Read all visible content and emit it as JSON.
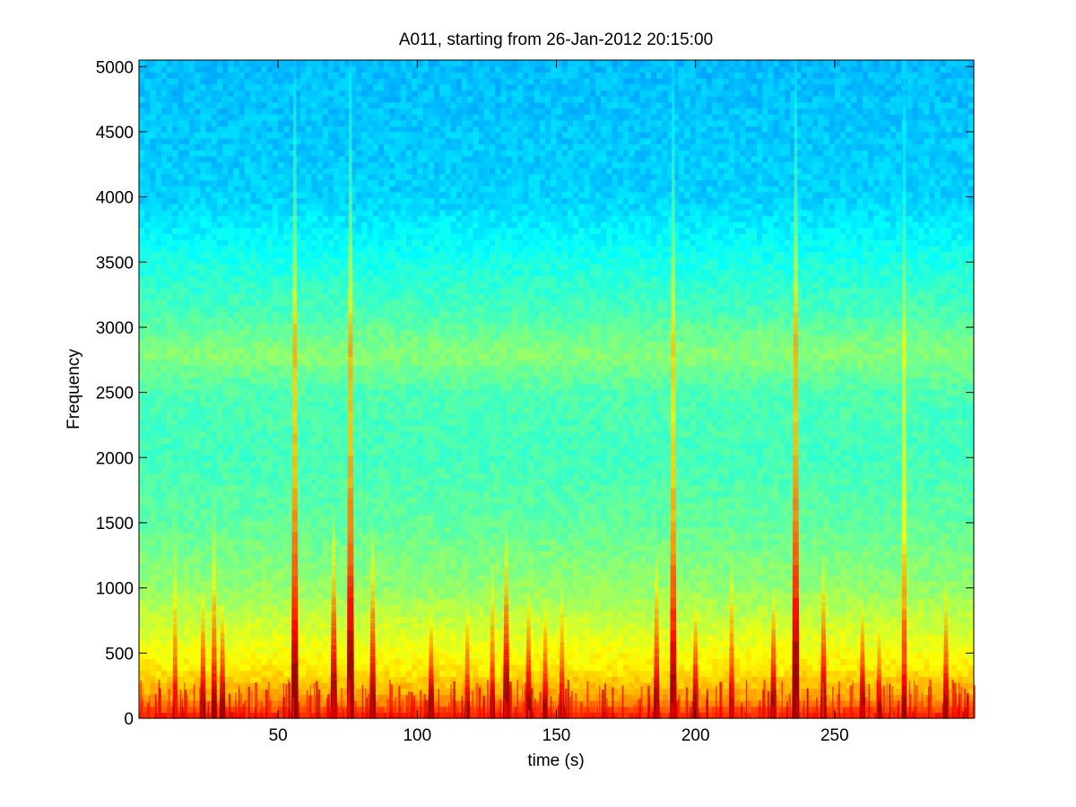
{
  "chart_data": {
    "type": "heatmap",
    "title": "A011, starting from 26-Jan-2012 20:15:00",
    "xlabel": "time (s)",
    "ylabel": "Frequency",
    "xlim": [
      0,
      300
    ],
    "ylim": [
      0,
      5050
    ],
    "x_ticks": [
      50,
      100,
      150,
      200,
      250
    ],
    "y_ticks": [
      0,
      500,
      1000,
      1500,
      2000,
      2500,
      3000,
      3500,
      4000,
      4500,
      5000
    ],
    "colormap": "jet",
    "grid": false,
    "legend": "none",
    "broadband_band_hz": [
      2700,
      2900
    ],
    "background_levels": [
      {
        "freq": 0,
        "level": 0.86
      },
      {
        "freq": 150,
        "level": 0.72
      },
      {
        "freq": 400,
        "level": 0.64
      },
      {
        "freq": 700,
        "level": 0.58
      },
      {
        "freq": 1000,
        "level": 0.52
      },
      {
        "freq": 1500,
        "level": 0.47
      },
      {
        "freq": 2000,
        "level": 0.44
      },
      {
        "freq": 2500,
        "level": 0.45
      },
      {
        "freq": 2800,
        "level": 0.51
      },
      {
        "freq": 3100,
        "level": 0.45
      },
      {
        "freq": 3500,
        "level": 0.4
      },
      {
        "freq": 4000,
        "level": 0.33
      },
      {
        "freq": 5050,
        "level": 0.31
      }
    ],
    "transient_events": [
      {
        "t": 13,
        "fmax": 1400,
        "strength": 0.5
      },
      {
        "t": 23,
        "fmax": 1000,
        "strength": 0.7
      },
      {
        "t": 27,
        "fmax": 1600,
        "strength": 0.65
      },
      {
        "t": 30,
        "fmax": 900,
        "strength": 0.75
      },
      {
        "t": 56,
        "fmax": 5050,
        "strength": 0.95
      },
      {
        "t": 70,
        "fmax": 1600,
        "strength": 0.9
      },
      {
        "t": 76,
        "fmax": 5050,
        "strength": 1.0
      },
      {
        "t": 84,
        "fmax": 1500,
        "strength": 0.8
      },
      {
        "t": 105,
        "fmax": 800,
        "strength": 0.8
      },
      {
        "t": 118,
        "fmax": 900,
        "strength": 0.6
      },
      {
        "t": 127,
        "fmax": 1200,
        "strength": 0.6
      },
      {
        "t": 132,
        "fmax": 1500,
        "strength": 0.9
      },
      {
        "t": 140,
        "fmax": 1000,
        "strength": 0.75
      },
      {
        "t": 146,
        "fmax": 900,
        "strength": 0.65
      },
      {
        "t": 152,
        "fmax": 1000,
        "strength": 0.6
      },
      {
        "t": 186,
        "fmax": 1300,
        "strength": 0.75
      },
      {
        "t": 192,
        "fmax": 5050,
        "strength": 0.85
      },
      {
        "t": 200,
        "fmax": 900,
        "strength": 0.75
      },
      {
        "t": 213,
        "fmax": 1300,
        "strength": 0.6
      },
      {
        "t": 228,
        "fmax": 1000,
        "strength": 0.8
      },
      {
        "t": 236,
        "fmax": 5050,
        "strength": 1.0
      },
      {
        "t": 246,
        "fmax": 1300,
        "strength": 0.75
      },
      {
        "t": 260,
        "fmax": 900,
        "strength": 0.75
      },
      {
        "t": 266,
        "fmax": 700,
        "strength": 0.6
      },
      {
        "t": 275,
        "fmax": 5050,
        "strength": 0.55
      },
      {
        "t": 290,
        "fmax": 1050,
        "strength": 0.7
      }
    ]
  }
}
